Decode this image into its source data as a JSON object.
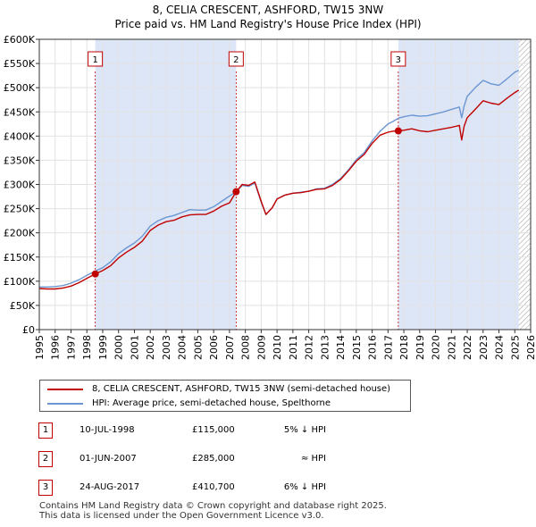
{
  "title_line1": "8, CELIA CRESCENT, ASHFORD, TW15 3NW",
  "title_line2": "Price paid vs. HM Land Registry's House Price Index (HPI)",
  "colors": {
    "price": "#c00000",
    "hpi": "#6a96d2",
    "shade": "#dde6f6",
    "hatch": "#888888"
  },
  "chart_data": {
    "type": "line",
    "xlim": [
      1995,
      2026
    ],
    "ylim": [
      0,
      600000
    ],
    "x_ticks": [
      "1995",
      "1996",
      "1997",
      "1998",
      "1999",
      "2000",
      "2001",
      "2002",
      "2003",
      "2004",
      "2005",
      "2006",
      "2007",
      "2008",
      "2009",
      "2010",
      "2011",
      "2012",
      "2013",
      "2014",
      "2015",
      "2016",
      "2017",
      "2018",
      "2019",
      "2020",
      "2021",
      "2022",
      "2023",
      "2024",
      "2025",
      "2026"
    ],
    "y_ticks": [
      "£0",
      "£50K",
      "£100K",
      "£150K",
      "£200K",
      "£250K",
      "£300K",
      "£350K",
      "£400K",
      "£450K",
      "£500K",
      "£550K",
      "£600K"
    ],
    "series": [
      {
        "name": "8, CELIA CRESCENT, ASHFORD, TW15 3NW (semi-detached house)",
        "color": "#c00000",
        "points": [
          [
            1995.0,
            85000
          ],
          [
            1995.5,
            84000
          ],
          [
            1996.0,
            84000
          ],
          [
            1996.5,
            86000
          ],
          [
            1997.0,
            90000
          ],
          [
            1997.5,
            97000
          ],
          [
            1998.0,
            106000
          ],
          [
            1998.53,
            115000
          ],
          [
            1999.0,
            122000
          ],
          [
            1999.5,
            132000
          ],
          [
            2000.0,
            148000
          ],
          [
            2000.5,
            160000
          ],
          [
            2001.0,
            170000
          ],
          [
            2001.5,
            183000
          ],
          [
            2002.0,
            205000
          ],
          [
            2002.5,
            216000
          ],
          [
            2003.0,
            223000
          ],
          [
            2003.5,
            226000
          ],
          [
            2004.0,
            233000
          ],
          [
            2004.5,
            237000
          ],
          [
            2005.0,
            238000
          ],
          [
            2005.5,
            238000
          ],
          [
            2006.0,
            245000
          ],
          [
            2006.5,
            255000
          ],
          [
            2007.0,
            262000
          ],
          [
            2007.42,
            285000
          ],
          [
            2007.8,
            300000
          ],
          [
            2008.2,
            298000
          ],
          [
            2008.6,
            305000
          ],
          [
            2009.0,
            265000
          ],
          [
            2009.3,
            238000
          ],
          [
            2009.7,
            252000
          ],
          [
            2010.0,
            270000
          ],
          [
            2010.5,
            278000
          ],
          [
            2011.0,
            282000
          ],
          [
            2011.5,
            283000
          ],
          [
            2012.0,
            286000
          ],
          [
            2012.5,
            290000
          ],
          [
            2013.0,
            291000
          ],
          [
            2013.5,
            298000
          ],
          [
            2014.0,
            310000
          ],
          [
            2014.5,
            328000
          ],
          [
            2015.0,
            348000
          ],
          [
            2015.5,
            362000
          ],
          [
            2016.0,
            385000
          ],
          [
            2016.5,
            402000
          ],
          [
            2017.0,
            408000
          ],
          [
            2017.3,
            410000
          ],
          [
            2017.65,
            410700
          ],
          [
            2018.0,
            412000
          ],
          [
            2018.5,
            415000
          ],
          [
            2019.0,
            411000
          ],
          [
            2019.5,
            409000
          ],
          [
            2020.0,
            412000
          ],
          [
            2020.5,
            415000
          ],
          [
            2021.0,
            418000
          ],
          [
            2021.5,
            422000
          ],
          [
            2021.65,
            392000
          ],
          [
            2021.8,
            420000
          ],
          [
            2022.0,
            438000
          ],
          [
            2022.5,
            455000
          ],
          [
            2023.0,
            473000
          ],
          [
            2023.5,
            468000
          ],
          [
            2024.0,
            465000
          ],
          [
            2024.5,
            478000
          ],
          [
            2025.0,
            490000
          ],
          [
            2025.25,
            495000
          ]
        ]
      },
      {
        "name": "HPI: Average price, semi-detached house, Spelthorne",
        "color": "#6a96d2",
        "points": [
          [
            1995.0,
            88000
          ],
          [
            1995.5,
            88000
          ],
          [
            1996.0,
            89000
          ],
          [
            1996.5,
            91000
          ],
          [
            1997.0,
            96000
          ],
          [
            1997.5,
            103000
          ],
          [
            1998.0,
            112000
          ],
          [
            1998.53,
            121000
          ],
          [
            1999.0,
            128000
          ],
          [
            1999.5,
            140000
          ],
          [
            2000.0,
            157000
          ],
          [
            2000.5,
            169000
          ],
          [
            2001.0,
            179000
          ],
          [
            2001.5,
            193000
          ],
          [
            2002.0,
            214000
          ],
          [
            2002.5,
            225000
          ],
          [
            2003.0,
            232000
          ],
          [
            2003.5,
            236000
          ],
          [
            2004.0,
            242000
          ],
          [
            2004.5,
            248000
          ],
          [
            2005.0,
            247000
          ],
          [
            2005.5,
            247000
          ],
          [
            2006.0,
            254000
          ],
          [
            2006.5,
            265000
          ],
          [
            2007.0,
            276000
          ],
          [
            2007.42,
            285000
          ],
          [
            2007.8,
            298000
          ],
          [
            2008.2,
            296000
          ],
          [
            2008.6,
            303000
          ],
          [
            2009.0,
            263000
          ],
          [
            2009.3,
            238000
          ],
          [
            2009.7,
            252000
          ],
          [
            2010.0,
            270000
          ],
          [
            2010.5,
            278000
          ],
          [
            2011.0,
            282000
          ],
          [
            2011.5,
            284000
          ],
          [
            2012.0,
            286000
          ],
          [
            2012.5,
            291000
          ],
          [
            2013.0,
            292000
          ],
          [
            2013.5,
            300000
          ],
          [
            2014.0,
            312000
          ],
          [
            2014.5,
            330000
          ],
          [
            2015.0,
            351000
          ],
          [
            2015.5,
            366000
          ],
          [
            2016.0,
            390000
          ],
          [
            2016.5,
            410000
          ],
          [
            2017.0,
            425000
          ],
          [
            2017.3,
            430000
          ],
          [
            2017.65,
            437000
          ],
          [
            2018.0,
            440000
          ],
          [
            2018.5,
            443000
          ],
          [
            2019.0,
            441000
          ],
          [
            2019.5,
            442000
          ],
          [
            2020.0,
            446000
          ],
          [
            2020.5,
            450000
          ],
          [
            2021.0,
            455000
          ],
          [
            2021.5,
            460000
          ],
          [
            2021.65,
            438000
          ],
          [
            2021.8,
            462000
          ],
          [
            2022.0,
            482000
          ],
          [
            2022.5,
            500000
          ],
          [
            2023.0,
            515000
          ],
          [
            2023.5,
            508000
          ],
          [
            2024.0,
            505000
          ],
          [
            2024.5,
            518000
          ],
          [
            2025.0,
            532000
          ],
          [
            2025.25,
            536000
          ]
        ]
      }
    ],
    "sales": [
      {
        "marker": "1",
        "x": 1998.53,
        "price": 115000,
        "date": "10-JUL-1998",
        "price_label": "£115,000",
        "hpi_label": "5% ↓ HPI"
      },
      {
        "marker": "2",
        "x": 2007.42,
        "price": 285000,
        "date": "01-JUN-2007",
        "price_label": "£285,000",
        "hpi_label": "≈ HPI"
      },
      {
        "marker": "3",
        "x": 2017.65,
        "price": 410700,
        "date": "24-AUG-2017",
        "price_label": "£410,700",
        "hpi_label": "6% ↓ HPI"
      }
    ],
    "shaded_ranges": [
      [
        1998.53,
        2007.42
      ],
      [
        2017.65,
        2025.25
      ]
    ],
    "hatched_range": [
      2025.25,
      2026
    ]
  },
  "legend": {
    "price_label": "8, CELIA CRESCENT, ASHFORD, TW15 3NW (semi-detached house)",
    "hpi_label": "HPI: Average price, semi-detached house, Spelthorne"
  },
  "footer_line1": "Contains HM Land Registry data © Crown copyright and database right 2025.",
  "footer_line2": "This data is licensed under the Open Government Licence v3.0."
}
